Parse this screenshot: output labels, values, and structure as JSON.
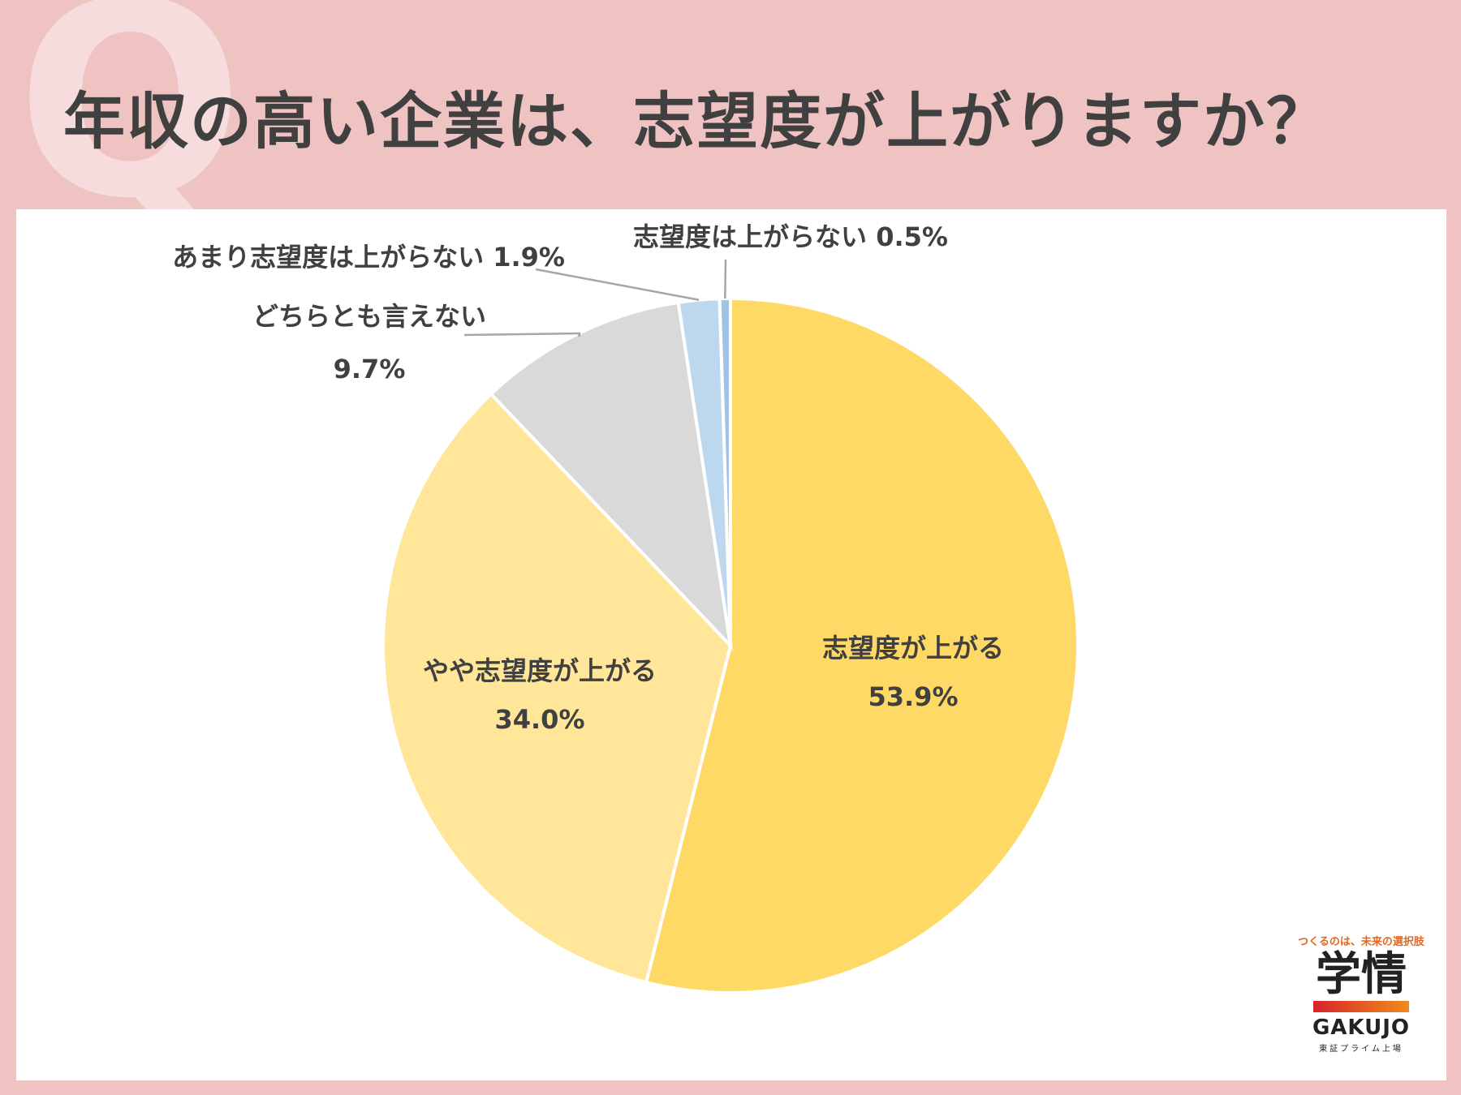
{
  "header": {
    "q_mark": "Q",
    "title": "年収の高い企業は、志望度が上がりますか？"
  },
  "chart_data": {
    "type": "pie",
    "title": "年収の高い企業は、志望度が上がりますか？",
    "start_angle": "12 o'clock",
    "direction": "clockwise",
    "slices": [
      {
        "label": "志望度が上がる",
        "value": 53.9,
        "value_label": "53.9%",
        "color": "#ffd966"
      },
      {
        "label": "やや志望度が上がる",
        "value": 34.0,
        "value_label": "34.0%",
        "color": "#ffe699"
      },
      {
        "label": "どちらとも言えない",
        "value": 9.7,
        "value_label": "9.7%",
        "color": "#d9d9d9"
      },
      {
        "label": "あまり志望度は上がらない",
        "value": 1.9,
        "value_label": "1.9%",
        "color": "#bdd7ee"
      },
      {
        "label": "志望度は上がらない",
        "value": 0.5,
        "value_label": "0.5%",
        "color": "#9dc3e6"
      }
    ],
    "label_color": "#404040",
    "leader_line_color": "#a6a6a6"
  },
  "logo": {
    "tagline": "つくるのは、未来の選択肢",
    "kanji": "学情",
    "latin": "GAKUJO",
    "sub": "東証プライム上場"
  }
}
